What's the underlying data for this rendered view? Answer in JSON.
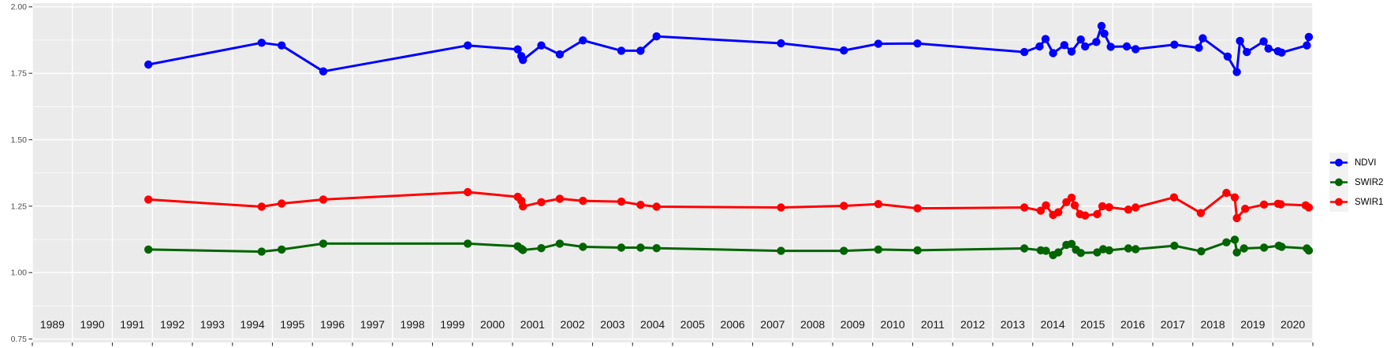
{
  "figure": {
    "background": "#FFFFFF",
    "panel_background": "#EBEBEB",
    "grid_color": "#FFFFFF",
    "axis_text_color": "#4D4D4D",
    "year_label_color": "#1A1A1A",
    "tick_color": "#333333"
  },
  "legend": {
    "position": "right",
    "key_fill": "#F2F2F2",
    "entries": [
      {
        "label": "NDVI",
        "color": "#0000FF"
      },
      {
        "label": "SWIR2",
        "color": "#006400"
      },
      {
        "label": "SWIR1",
        "color": "#FF0000"
      }
    ]
  },
  "chart_data": {
    "type": "line",
    "title": "",
    "xlabel": "",
    "ylabel": "",
    "grid": true,
    "legend_position": "right",
    "x_axis": {
      "range": [
        1988.5,
        2020.5
      ],
      "year_labels": [
        "1989",
        "1990",
        "1991",
        "1992",
        "1993",
        "1994",
        "1995",
        "1996",
        "1997",
        "1998",
        "1999",
        "2000",
        "2001",
        "2002",
        "2003",
        "2004",
        "2005",
        "2006",
        "2007",
        "2008",
        "2009",
        "2010",
        "2011",
        "2012",
        "2013",
        "2014",
        "2015",
        "2016",
        "2017",
        "2018",
        "2019",
        "2020"
      ],
      "gridlines_at_year_boundaries": true
    },
    "y_axis": {
      "range": [
        0.737,
        2.014
      ],
      "major_ticks": [
        0.75,
        1.0,
        1.25,
        1.5,
        1.75,
        2.0
      ],
      "tick_labels": [
        "0.75",
        "1.00",
        "1.25",
        "1.50",
        "1.75",
        "2.00"
      ],
      "minor_gridlines": [
        0.875,
        1.125,
        1.375,
        1.625,
        1.875
      ]
    },
    "series": [
      {
        "name": "NDVI",
        "color": "#0000FF",
        "points": [
          [
            1991.4,
            1.783
          ],
          [
            1994.23,
            1.865
          ],
          [
            1994.73,
            1.855
          ],
          [
            1995.77,
            1.757
          ],
          [
            1999.38,
            1.855
          ],
          [
            2000.63,
            1.84
          ],
          [
            2000.72,
            1.815
          ],
          [
            2000.76,
            1.8
          ],
          [
            2001.22,
            1.855
          ],
          [
            2001.68,
            1.821
          ],
          [
            2002.26,
            1.874
          ],
          [
            2003.22,
            1.835
          ],
          [
            2003.7,
            1.835
          ],
          [
            2004.1,
            1.889
          ],
          [
            2007.21,
            1.863
          ],
          [
            2008.78,
            1.836
          ],
          [
            2009.64,
            1.861
          ],
          [
            2010.62,
            1.862
          ],
          [
            2013.29,
            1.83
          ],
          [
            2013.67,
            1.851
          ],
          [
            2013.82,
            1.879
          ],
          [
            2014.01,
            1.826
          ],
          [
            2014.29,
            1.856
          ],
          [
            2014.47,
            1.832
          ],
          [
            2014.7,
            1.877
          ],
          [
            2014.81,
            1.851
          ],
          [
            2015.09,
            1.868
          ],
          [
            2015.22,
            1.928
          ],
          [
            2015.29,
            1.899
          ],
          [
            2015.45,
            1.85
          ],
          [
            2015.85,
            1.851
          ],
          [
            2016.07,
            1.841
          ],
          [
            2017.04,
            1.858
          ],
          [
            2017.65,
            1.846
          ],
          [
            2017.75,
            1.882
          ],
          [
            2018.37,
            1.813
          ],
          [
            2018.6,
            1.755
          ],
          [
            2018.68,
            1.872
          ],
          [
            2018.85,
            1.83
          ],
          [
            2019.27,
            1.87
          ],
          [
            2019.39,
            1.843
          ],
          [
            2019.63,
            1.833
          ],
          [
            2019.72,
            1.828
          ],
          [
            2020.35,
            1.855
          ],
          [
            2020.4,
            1.887
          ]
        ]
      },
      {
        "name": "SWIR2",
        "color": "#006400",
        "points": [
          [
            1991.4,
            1.087
          ],
          [
            1994.23,
            1.079
          ],
          [
            1994.73,
            1.087
          ],
          [
            1995.77,
            1.109
          ],
          [
            1999.38,
            1.109
          ],
          [
            2000.63,
            1.099
          ],
          [
            2000.72,
            1.09
          ],
          [
            2000.76,
            1.085
          ],
          [
            2001.22,
            1.092
          ],
          [
            2001.68,
            1.109
          ],
          [
            2002.26,
            1.097
          ],
          [
            2003.22,
            1.094
          ],
          [
            2003.7,
            1.094
          ],
          [
            2004.1,
            1.092
          ],
          [
            2007.21,
            1.082
          ],
          [
            2008.78,
            1.082
          ],
          [
            2009.64,
            1.087
          ],
          [
            2010.62,
            1.084
          ],
          [
            2013.29,
            1.091
          ],
          [
            2013.7,
            1.084
          ],
          [
            2013.83,
            1.082
          ],
          [
            2014.01,
            1.066
          ],
          [
            2014.14,
            1.076
          ],
          [
            2014.34,
            1.104
          ],
          [
            2014.47,
            1.108
          ],
          [
            2014.58,
            1.086
          ],
          [
            2014.7,
            1.074
          ],
          [
            2015.11,
            1.076
          ],
          [
            2015.26,
            1.088
          ],
          [
            2015.41,
            1.084
          ],
          [
            2015.89,
            1.091
          ],
          [
            2016.07,
            1.088
          ],
          [
            2017.04,
            1.101
          ],
          [
            2017.71,
            1.08
          ],
          [
            2018.34,
            1.114
          ],
          [
            2018.55,
            1.124
          ],
          [
            2018.6,
            1.076
          ],
          [
            2018.78,
            1.091
          ],
          [
            2019.28,
            1.094
          ],
          [
            2019.65,
            1.101
          ],
          [
            2019.72,
            1.097
          ],
          [
            2020.35,
            1.091
          ],
          [
            2020.4,
            1.083
          ]
        ]
      },
      {
        "name": "SWIR1",
        "color": "#FF0000",
        "points": [
          [
            1991.4,
            1.275
          ],
          [
            1994.23,
            1.248
          ],
          [
            1994.73,
            1.26
          ],
          [
            1995.77,
            1.275
          ],
          [
            1999.38,
            1.303
          ],
          [
            2000.63,
            1.285
          ],
          [
            2000.72,
            1.27
          ],
          [
            2000.76,
            1.249
          ],
          [
            2001.22,
            1.265
          ],
          [
            2001.68,
            1.278
          ],
          [
            2002.26,
            1.27
          ],
          [
            2003.22,
            1.267
          ],
          [
            2003.7,
            1.255
          ],
          [
            2004.1,
            1.248
          ],
          [
            2007.21,
            1.245
          ],
          [
            2008.78,
            1.251
          ],
          [
            2009.64,
            1.258
          ],
          [
            2010.62,
            1.242
          ],
          [
            2013.29,
            1.245
          ],
          [
            2013.7,
            1.233
          ],
          [
            2013.83,
            1.253
          ],
          [
            2014.01,
            1.217
          ],
          [
            2014.14,
            1.227
          ],
          [
            2014.34,
            1.265
          ],
          [
            2014.47,
            1.282
          ],
          [
            2014.55,
            1.253
          ],
          [
            2014.68,
            1.22
          ],
          [
            2014.81,
            1.215
          ],
          [
            2015.11,
            1.22
          ],
          [
            2015.24,
            1.25
          ],
          [
            2015.41,
            1.246
          ],
          [
            2015.89,
            1.237
          ],
          [
            2016.07,
            1.245
          ],
          [
            2017.03,
            1.283
          ],
          [
            2017.7,
            1.224
          ],
          [
            2018.34,
            1.3
          ],
          [
            2018.55,
            1.283
          ],
          [
            2018.6,
            1.205
          ],
          [
            2018.81,
            1.24
          ],
          [
            2019.28,
            1.256
          ],
          [
            2019.63,
            1.259
          ],
          [
            2019.7,
            1.257
          ],
          [
            2020.32,
            1.253
          ],
          [
            2020.4,
            1.245
          ]
        ]
      }
    ]
  }
}
